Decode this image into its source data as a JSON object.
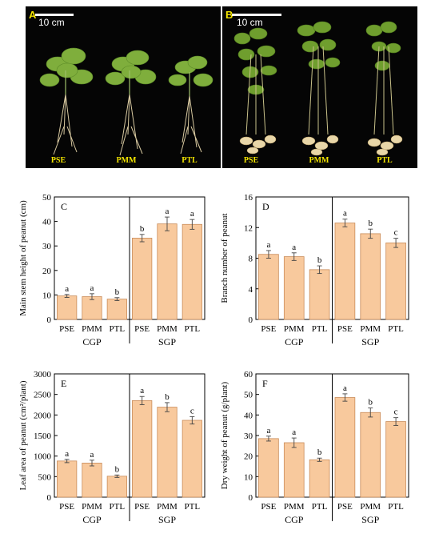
{
  "photos": [
    {
      "letter": "A",
      "scale_text": "10 cm",
      "labels": [
        "PSE",
        "PMM",
        "PTL"
      ],
      "background": "#050505",
      "label_color": "#f2e400",
      "content": "peanut plants with roots"
    },
    {
      "letter": "B",
      "scale_text": "10 cm",
      "labels": [
        "PSE",
        "PMM",
        "PTL"
      ],
      "background": "#050505",
      "label_color": "#f2e400",
      "content": "peanut plants with pods"
    }
  ],
  "style": {
    "bar_fill": "#f8c99d",
    "bar_stroke": "#c98c5a",
    "axis_color": "#000000"
  },
  "chart_data": [
    {
      "type": "bar",
      "panel": "C",
      "ylabel": "Main stem height of peanut (cm)",
      "ylim": [
        0,
        50
      ],
      "yticks": [
        0,
        10,
        20,
        30,
        40,
        50
      ],
      "categories": [
        "PSE",
        "PMM",
        "PTL",
        "PSE",
        "PMM",
        "PTL"
      ],
      "groups": [
        "CGP",
        "SGP"
      ],
      "values": [
        9.6,
        9.3,
        8.3,
        33.2,
        39.0,
        38.8
      ],
      "errors": [
        0.6,
        1.2,
        0.6,
        1.5,
        2.8,
        2.0
      ],
      "letters": [
        "a",
        "a",
        "b",
        "b",
        "a",
        "a"
      ]
    },
    {
      "type": "bar",
      "panel": "D",
      "ylabel": "Branch number of peanut",
      "ylim": [
        0,
        16
      ],
      "yticks": [
        0,
        4,
        8,
        12,
        16
      ],
      "categories": [
        "PSE",
        "PMM",
        "PTL",
        "PSE",
        "PMM",
        "PTL"
      ],
      "groups": [
        "CGP",
        "SGP"
      ],
      "values": [
        8.5,
        8.2,
        6.5,
        12.6,
        11.2,
        10.0
      ],
      "errors": [
        0.5,
        0.5,
        0.5,
        0.5,
        0.6,
        0.6
      ],
      "letters": [
        "a",
        "a",
        "b",
        "a",
        "b",
        "c"
      ]
    },
    {
      "type": "bar",
      "panel": "E",
      "ylabel": "Leaf area of peanut (cm²/plant)",
      "ylim": [
        0,
        3000
      ],
      "yticks": [
        0,
        500,
        1000,
        1500,
        2000,
        2500,
        3000
      ],
      "categories": [
        "PSE",
        "PMM",
        "PTL",
        "PSE",
        "PMM",
        "PTL"
      ],
      "groups": [
        "CGP",
        "SGP"
      ],
      "values": [
        880,
        830,
        510,
        2350,
        2190,
        1870
      ],
      "errors": [
        40,
        70,
        30,
        100,
        110,
        90
      ],
      "letters": [
        "a",
        "a",
        "b",
        "a",
        "b",
        "c"
      ]
    },
    {
      "type": "bar",
      "panel": "F",
      "ylabel": "Dry weight of peanut (g/plant)",
      "ylim": [
        0,
        60
      ],
      "yticks": [
        0,
        10,
        20,
        30,
        40,
        50,
        60
      ],
      "categories": [
        "PSE",
        "PMM",
        "PTL",
        "PSE",
        "PMM",
        "PTL"
      ],
      "groups": [
        "CGP",
        "SGP"
      ],
      "values": [
        28.5,
        26.5,
        18.2,
        48.5,
        41.2,
        36.8
      ],
      "errors": [
        1.2,
        2.3,
        0.8,
        1.8,
        2.2,
        1.9
      ],
      "letters": [
        "a",
        "a",
        "b",
        "a",
        "b",
        "c"
      ]
    }
  ]
}
